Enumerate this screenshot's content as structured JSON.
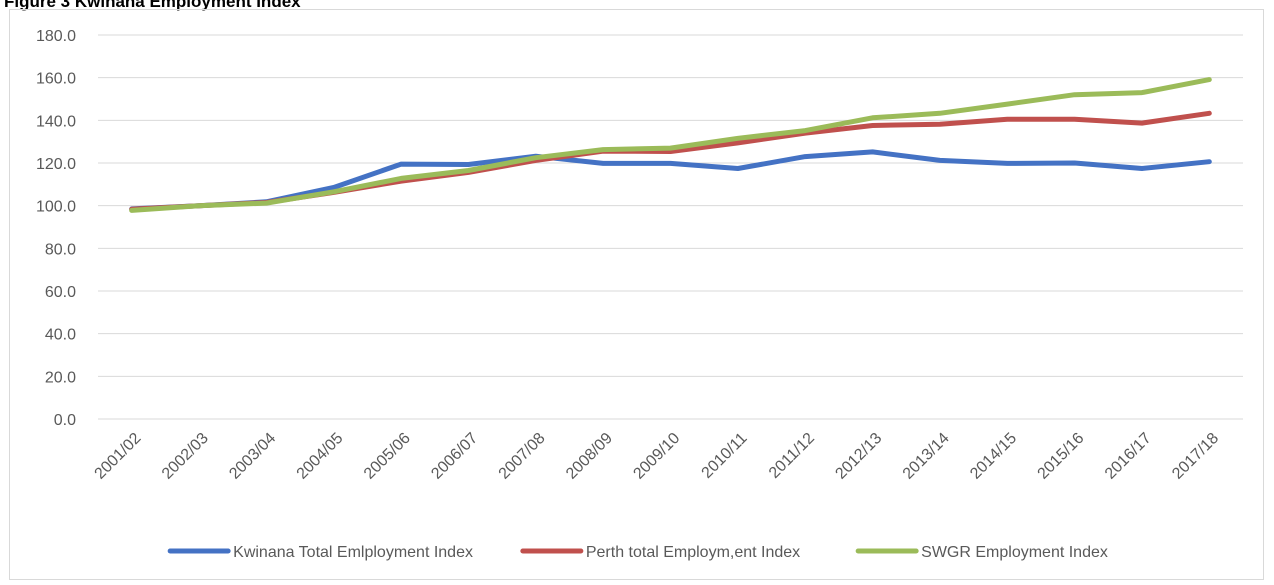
{
  "figure": {
    "title": "Figure 3 Kwinana Employment Index"
  },
  "chart_data": {
    "type": "line",
    "categories": [
      "2001/02",
      "2002/03",
      "2003/04",
      "2004/05",
      "2005/06",
      "2006/07",
      "2007/08",
      "2008/09",
      "2009/10",
      "2010/11",
      "2011/12",
      "2012/13",
      "2013/14",
      "2014/15",
      "2015/16",
      "2016/17",
      "2017/18"
    ],
    "ylim": [
      0,
      180
    ],
    "yticks": [
      "0.0",
      "20.0",
      "40.0",
      "60.0",
      "80.0",
      "100.0",
      "120.0",
      "140.0",
      "160.0",
      "180.0"
    ],
    "grid": true,
    "legend_position": "bottom",
    "series": [
      {
        "name": "Kwinana Total Emlployment Index",
        "color": "#4472c4",
        "values": [
          98.5,
          100.0,
          101.8,
          108.5,
          119.5,
          119.3,
          123.2,
          119.8,
          119.8,
          117.4,
          123.0,
          125.2,
          121.2,
          119.8,
          120.0,
          117.4,
          120.6
        ]
      },
      {
        "name": "Perth total Employm,ent Index",
        "color": "#c0504d",
        "values": [
          98.3,
          100.0,
          101.5,
          106.2,
          111.5,
          115.6,
          121.2,
          125.6,
          125.4,
          129.4,
          134.0,
          137.6,
          138.2,
          140.5,
          140.5,
          138.7,
          143.3
        ]
      },
      {
        "name": "SWGR Employment Index",
        "color": "#9bbb59",
        "values": [
          97.8,
          100.0,
          101.2,
          106.5,
          112.8,
          116.5,
          122.5,
          126.3,
          127.0,
          131.6,
          135.2,
          141.2,
          143.3,
          147.6,
          152.0,
          153.0,
          159.1
        ]
      }
    ]
  }
}
